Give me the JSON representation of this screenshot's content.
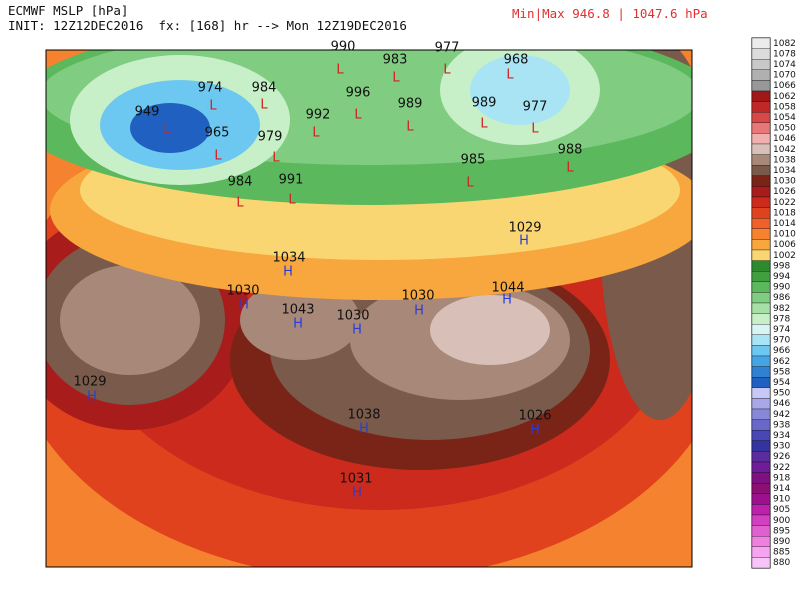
{
  "header": {
    "title": "ECMWF MSLP [hPa]",
    "init": "INIT: 12Z12DEC2016  fx: [168] hr --> Mon 12Z19DEC2016",
    "minmax": "Min|Max 946.8 | 1047.6 hPa"
  },
  "centers": [
    {
      "value": 990,
      "marker": "L"
    },
    {
      "value": 983,
      "marker": "L"
    },
    {
      "value": 977,
      "marker": "L"
    },
    {
      "value": 968,
      "marker": "L"
    },
    {
      "value": 974,
      "marker": "L"
    },
    {
      "value": 984,
      "marker": "L"
    },
    {
      "value": 949,
      "marker": "L"
    },
    {
      "value": 965,
      "marker": "L"
    },
    {
      "value": 979,
      "marker": "L"
    },
    {
      "value": 992,
      "marker": "L"
    },
    {
      "value": 996,
      "marker": "L"
    },
    {
      "value": 989,
      "marker": "L"
    },
    {
      "value": 989,
      "marker": "L"
    },
    {
      "value": 977,
      "marker": "L"
    },
    {
      "value": 988,
      "marker": "L"
    },
    {
      "value": 991,
      "marker": "L"
    },
    {
      "value": 984,
      "marker": "L"
    },
    {
      "value": 985,
      "marker": "L"
    },
    {
      "value": 1034,
      "marker": "H"
    },
    {
      "value": 1030,
      "marker": "H"
    },
    {
      "value": 1043,
      "marker": "H"
    },
    {
      "value": 1030,
      "marker": "H"
    },
    {
      "value": 1030,
      "marker": "H"
    },
    {
      "value": 1044,
      "marker": "H"
    },
    {
      "value": 1029,
      "marker": "H"
    },
    {
      "value": 1029,
      "marker": "H"
    },
    {
      "value": 1038,
      "marker": "H"
    },
    {
      "value": 1026,
      "marker": "H"
    },
    {
      "value": 1031,
      "marker": "H"
    }
  ],
  "colorbar": {
    "levels": [
      1082,
      1078,
      1074,
      1070,
      1066,
      1062,
      1058,
      1054,
      1050,
      1046,
      1042,
      1038,
      1034,
      1030,
      1026,
      1022,
      1018,
      1014,
      1010,
      1006,
      1002,
      998,
      994,
      990,
      986,
      982,
      978,
      974,
      970,
      966,
      962,
      958,
      954,
      950,
      946,
      942,
      938,
      934,
      930,
      926,
      922,
      918,
      914,
      910,
      905,
      900,
      895,
      890,
      885,
      880
    ],
    "colors": [
      "#ececec",
      "#dcdcdc",
      "#c8c8c8",
      "#b0b0b0",
      "#989898",
      "#a01818",
      "#c02828",
      "#d84848",
      "#e87878",
      "#f0b0b0",
      "#d8c0b8",
      "#a88878",
      "#7a5a4a",
      "#7a2418",
      "#a81c1c",
      "#cc2a1c",
      "#e0421e",
      "#f0602a",
      "#f4822e",
      "#f8a63e",
      "#fad672",
      "#2e8a2e",
      "#40a040",
      "#5cb85c",
      "#80cc80",
      "#a6e0a6",
      "#c8f0c8",
      "#d8f4f4",
      "#a8e4f4",
      "#6cc8f0",
      "#44a4e4",
      "#3080d4",
      "#2060c0",
      "#c8c8f4",
      "#a8a8e8",
      "#8888d8",
      "#6868c8",
      "#4848b4",
      "#3434a0",
      "#5a2c9c",
      "#6e1c98",
      "#7e1082",
      "#8c1072",
      "#9c1090",
      "#bc20ac",
      "#d040c0",
      "#e060d0",
      "#f080e0",
      "#f4a4f0",
      "#f8c4f8"
    ]
  }
}
